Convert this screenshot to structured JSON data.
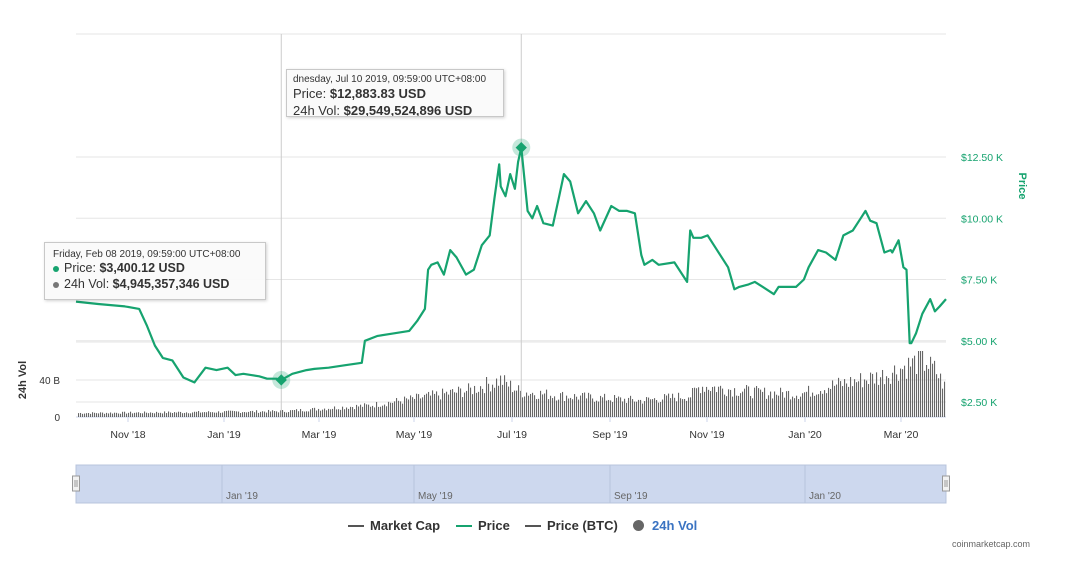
{
  "colors": {
    "price": "#16a36f",
    "volume": "#666666",
    "market_cap": "#555555",
    "price_btc": "#555555",
    "navigator": "#cdd8ee"
  },
  "chart_data": {
    "type": "line",
    "x_ticks": [
      "Nov '18",
      "Jan '19",
      "Mar '19",
      "May '19",
      "Jul '19",
      "Sep '19",
      "Nov '19",
      "Jan '20",
      "Mar '20"
    ],
    "price_axis": {
      "label": "Price",
      "ticks": [
        "$2.50 K",
        "$5.00 K",
        "$7.50 K",
        "$10.00 K",
        "$12.50 K"
      ],
      "range": [
        0,
        15000
      ]
    },
    "volume_axis": {
      "label": "24h Vol",
      "ticks": [
        "0",
        "40 B"
      ],
      "range": [
        0,
        80000000000
      ]
    },
    "series": [
      {
        "name": "Price",
        "x": [
          "2018-10-01",
          "2018-10-15",
          "2018-11-01",
          "2018-11-10",
          "2018-11-15",
          "2018-11-20",
          "2018-11-25",
          "2018-12-01",
          "2018-12-08",
          "2018-12-15",
          "2018-12-22",
          "2018-12-29",
          "2019-01-05",
          "2019-01-10",
          "2019-01-15",
          "2019-01-20",
          "2019-01-25",
          "2019-01-30",
          "2019-02-05",
          "2019-02-08",
          "2019-02-15",
          "2019-02-24",
          "2019-03-01",
          "2019-03-10",
          "2019-03-20",
          "2019-03-31",
          "2019-04-02",
          "2019-04-10",
          "2019-04-20",
          "2019-04-30",
          "2019-05-05",
          "2019-05-10",
          "2019-05-12",
          "2019-05-14",
          "2019-05-18",
          "2019-05-22",
          "2019-05-26",
          "2019-05-30",
          "2019-06-05",
          "2019-06-10",
          "2019-06-15",
          "2019-06-20",
          "2019-06-23",
          "2019-06-26",
          "2019-06-27",
          "2019-06-30",
          "2019-07-03",
          "2019-07-06",
          "2019-07-08",
          "2019-07-10",
          "2019-07-14",
          "2019-07-17",
          "2019-07-20",
          "2019-07-24",
          "2019-07-30",
          "2019-08-03",
          "2019-08-06",
          "2019-08-10",
          "2019-08-15",
          "2019-08-20",
          "2019-08-25",
          "2019-08-29",
          "2019-09-05",
          "2019-09-10",
          "2019-09-15",
          "2019-09-20",
          "2019-09-24",
          "2019-09-26",
          "2019-10-01",
          "2019-10-05",
          "2019-10-15",
          "2019-10-23",
          "2019-10-25",
          "2019-10-27",
          "2019-11-01",
          "2019-11-05",
          "2019-11-10",
          "2019-11-18",
          "2019-11-22",
          "2019-11-25",
          "2019-12-01",
          "2019-12-05",
          "2019-12-10",
          "2019-12-17",
          "2019-12-20",
          "2019-12-25",
          "2019-12-31",
          "2020-01-05",
          "2020-01-08",
          "2020-01-14",
          "2020-01-19",
          "2020-01-25",
          "2020-01-30",
          "2020-02-05",
          "2020-02-10",
          "2020-02-13",
          "2020-02-16",
          "2020-02-20",
          "2020-02-25",
          "2020-02-29",
          "2020-03-01",
          "2020-03-05",
          "2020-03-08",
          "2020-03-10",
          "2020-03-12",
          "2020-03-13",
          "2020-03-16",
          "2020-03-20",
          "2020-03-25",
          "2020-03-28",
          "2020-03-31",
          "2020-04-04"
        ],
        "values": [
          6600,
          6500,
          6400,
          6300,
          5600,
          4800,
          4300,
          4200,
          3500,
          3300,
          3900,
          3800,
          3900,
          3600,
          3650,
          3600,
          3550,
          3450,
          3450,
          3400.12,
          3650,
          3800,
          3850,
          3900,
          4000,
          4100,
          5000,
          5200,
          5300,
          5400,
          5800,
          6300,
          7900,
          8100,
          8200,
          7700,
          8700,
          8400,
          7700,
          7900,
          8900,
          9300,
          10800,
          12200,
          11300,
          10900,
          11800,
          11200,
          12300,
          12883.83,
          10300,
          10000,
          10500,
          9800,
          9700,
          10900,
          11800,
          11500,
          10200,
          10700,
          10200,
          9500,
          10500,
          10300,
          10300,
          10200,
          8500,
          8100,
          8300,
          8100,
          8200,
          7400,
          9500,
          9200,
          9200,
          9300,
          8800,
          8000,
          7100,
          7200,
          7300,
          7400,
          7200,
          6900,
          7200,
          7200,
          7200,
          7500,
          8000,
          8700,
          8600,
          8300,
          9300,
          9500,
          10000,
          10300,
          9900,
          9800,
          8600,
          8700,
          8600,
          9100,
          8000,
          7900,
          4900,
          4900,
          5300,
          6100,
          6700,
          6200,
          6400,
          6700
        ]
      },
      {
        "name": "24h Vol"
      }
    ],
    "tooltips": [
      {
        "header": "dnesday, Jul 10 2019, 09:59:00 UTC+08:00",
        "price_label": "Price:",
        "price_value": "$12,883.83 USD",
        "vol_label": "24h Vol:",
        "vol_value": "$29,549,524,896 USD"
      },
      {
        "header": "Friday, Feb 08 2019, 09:59:00 UTC+08:00",
        "price_label": "Price:",
        "price_value": "$3,400.12 USD",
        "vol_label": "24h Vol:",
        "vol_value": "$4,945,357,346 USD"
      }
    ],
    "navigator_ticks": [
      "Jan '19",
      "May '19",
      "Sep '19",
      "Jan '20"
    ],
    "legend": [
      {
        "name": "Market Cap",
        "symbol": "line"
      },
      {
        "name": "Price",
        "symbol": "line"
      },
      {
        "name": "Price (BTC)",
        "symbol": "line"
      },
      {
        "name": "24h Vol",
        "symbol": "circle"
      }
    ]
  },
  "credit": "coinmarketcap.com"
}
